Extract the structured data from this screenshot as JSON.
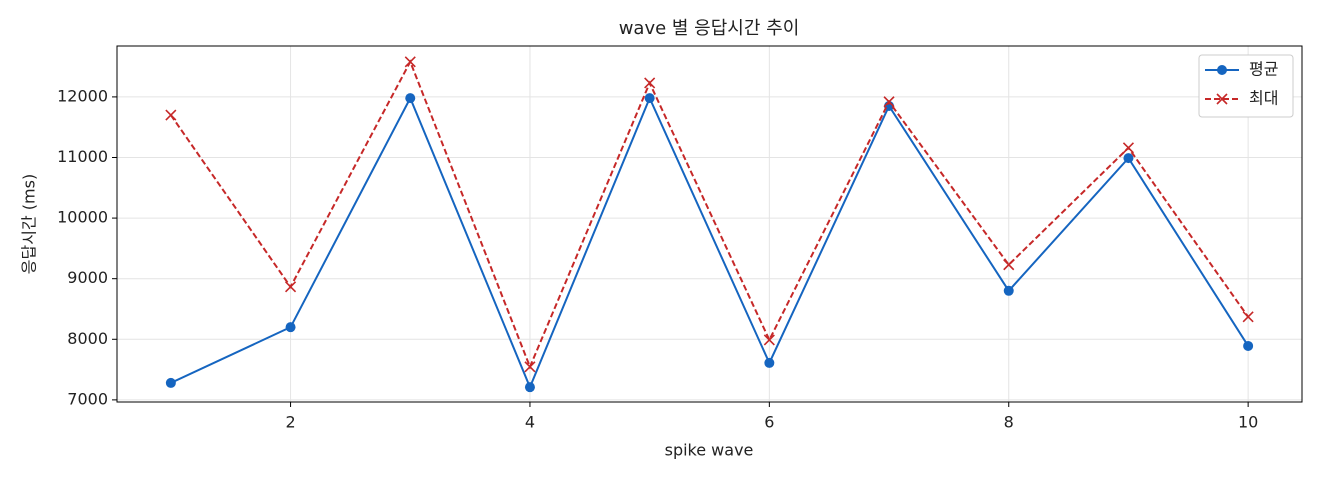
{
  "chart_data": {
    "type": "line",
    "title": "wave 별 응답시간 추이",
    "x_label": "spike wave",
    "y_label": "응답시간 (ms)",
    "x": [
      1,
      2,
      3,
      4,
      5,
      6,
      7,
      8,
      9,
      10
    ],
    "series": [
      {
        "name": "평균",
        "color": "#1565c0",
        "marker": "circle",
        "linestyle": "solid",
        "values": [
          7280,
          8200,
          11980,
          7210,
          11980,
          7610,
          11850,
          8800,
          10990,
          7890
        ]
      },
      {
        "name": "최대",
        "color": "#c62828",
        "marker": "x",
        "linestyle": "dashed",
        "values": [
          11700,
          8865,
          12580,
          7545,
          12230,
          7990,
          11920,
          9230,
          11160,
          8370
        ]
      }
    ],
    "xlim": [
      0.55,
      10.45
    ],
    "xticks": [
      2,
      4,
      6,
      8,
      10
    ],
    "ylim": [
      6965,
      12840
    ],
    "yticks": [
      7000,
      8000,
      9000,
      10000,
      11000,
      12000
    ],
    "grid": true,
    "legend": "upper-right"
  }
}
